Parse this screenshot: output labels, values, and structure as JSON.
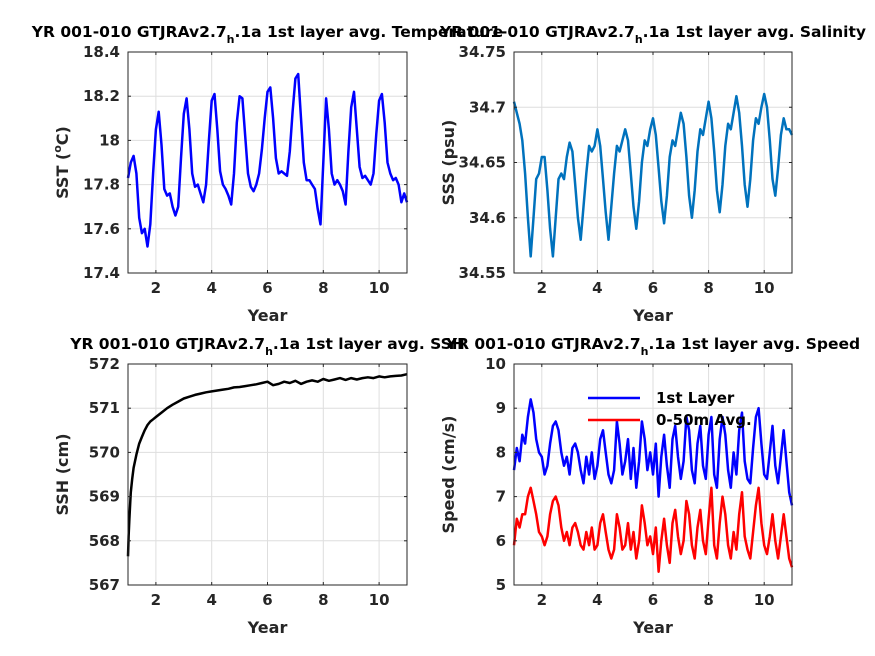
{
  "chart_data": [
    {
      "type": "line",
      "title": "YR 001-010 GTJRAv2.7",
      "title_sub": "h",
      "title_tail": ".1a 1st layer avg. Temperature",
      "xlabel": "Year",
      "ylabel": "SST (",
      "ylabel_sup": "o",
      "ylabel_tail": "C)",
      "xlim": [
        1,
        11
      ],
      "ylim": [
        17.4,
        18.4
      ],
      "xticks": [
        2,
        4,
        6,
        8,
        10
      ],
      "yticks": [
        17.4,
        17.6,
        17.8,
        18,
        18.2,
        18.4
      ],
      "ytick_labels": [
        "17.4",
        "17.6",
        "17.8",
        "18",
        "18.2",
        "18.4"
      ],
      "grid": true,
      "series": [
        {
          "color": "#0000ff",
          "x": [
            1.0,
            1.1,
            1.2,
            1.3,
            1.4,
            1.5,
            1.6,
            1.7,
            1.8,
            1.9,
            2.0,
            2.1,
            2.2,
            2.3,
            2.4,
            2.5,
            2.6,
            2.7,
            2.8,
            2.9,
            3.0,
            3.1,
            3.2,
            3.3,
            3.4,
            3.5,
            3.6,
            3.7,
            3.8,
            3.9,
            4.0,
            4.1,
            4.2,
            4.3,
            4.4,
            4.5,
            4.6,
            4.7,
            4.8,
            4.9,
            5.0,
            5.1,
            5.2,
            5.3,
            5.4,
            5.5,
            5.6,
            5.7,
            5.8,
            5.9,
            6.0,
            6.1,
            6.2,
            6.3,
            6.4,
            6.5,
            6.6,
            6.7,
            6.8,
            6.9,
            7.0,
            7.1,
            7.2,
            7.3,
            7.4,
            7.5,
            7.6,
            7.7,
            7.8,
            7.9,
            8.0,
            8.1,
            8.2,
            8.3,
            8.4,
            8.5,
            8.6,
            8.7,
            8.8,
            8.9,
            9.0,
            9.1,
            9.2,
            9.3,
            9.4,
            9.5,
            9.6,
            9.7,
            9.8,
            9.9,
            10.0,
            10.1,
            10.2,
            10.3,
            10.4,
            10.5,
            10.6,
            10.7,
            10.8,
            10.9,
            11.0
          ],
          "y": [
            17.83,
            17.9,
            17.93,
            17.85,
            17.65,
            17.58,
            17.6,
            17.52,
            17.62,
            17.85,
            18.05,
            18.13,
            17.98,
            17.78,
            17.75,
            17.76,
            17.7,
            17.66,
            17.7,
            17.92,
            18.12,
            18.19,
            18.05,
            17.85,
            17.79,
            17.8,
            17.76,
            17.72,
            17.8,
            18.0,
            18.18,
            18.21,
            18.05,
            17.86,
            17.8,
            17.78,
            17.75,
            17.71,
            17.85,
            18.08,
            18.2,
            18.19,
            18.02,
            17.85,
            17.79,
            17.77,
            17.8,
            17.85,
            17.96,
            18.1,
            18.22,
            18.24,
            18.1,
            17.92,
            17.85,
            17.86,
            17.85,
            17.84,
            17.95,
            18.13,
            18.28,
            18.3,
            18.1,
            17.9,
            17.82,
            17.82,
            17.8,
            17.78,
            17.69,
            17.62,
            17.9,
            18.19,
            18.05,
            17.85,
            17.8,
            17.82,
            17.8,
            17.77,
            17.71,
            17.95,
            18.15,
            18.22,
            18.05,
            17.88,
            17.83,
            17.84,
            17.82,
            17.8,
            17.85,
            18.03,
            18.18,
            18.21,
            18.08,
            17.9,
            17.85,
            17.82,
            17.83,
            17.8,
            17.72,
            17.76,
            17.72
          ]
        }
      ]
    },
    {
      "type": "line",
      "title": "YR 001-010 GTJRAv2.7",
      "title_sub": "h",
      "title_tail": ".1a 1st layer avg. Salinity",
      "xlabel": "Year",
      "ylabel": "SSS (psu)",
      "xlim": [
        1,
        11
      ],
      "ylim": [
        34.55,
        34.75
      ],
      "xticks": [
        2,
        4,
        6,
        8,
        10
      ],
      "yticks": [
        34.55,
        34.6,
        34.65,
        34.7,
        34.75
      ],
      "ytick_labels": [
        "34.55",
        "34.6",
        "34.65",
        "34.7",
        "34.75"
      ],
      "grid": true,
      "series": [
        {
          "color": "#0072bd",
          "x": [
            1.0,
            1.1,
            1.2,
            1.3,
            1.4,
            1.5,
            1.6,
            1.7,
            1.8,
            1.9,
            2.0,
            2.1,
            2.2,
            2.3,
            2.4,
            2.5,
            2.6,
            2.7,
            2.8,
            2.9,
            3.0,
            3.1,
            3.2,
            3.3,
            3.4,
            3.5,
            3.6,
            3.7,
            3.8,
            3.9,
            4.0,
            4.1,
            4.2,
            4.3,
            4.4,
            4.5,
            4.6,
            4.7,
            4.8,
            4.9,
            5.0,
            5.1,
            5.2,
            5.3,
            5.4,
            5.5,
            5.6,
            5.7,
            5.8,
            5.9,
            6.0,
            6.1,
            6.2,
            6.3,
            6.4,
            6.5,
            6.6,
            6.7,
            6.8,
            6.9,
            7.0,
            7.1,
            7.2,
            7.3,
            7.4,
            7.5,
            7.6,
            7.7,
            7.8,
            7.9,
            8.0,
            8.1,
            8.2,
            8.3,
            8.4,
            8.5,
            8.6,
            8.7,
            8.8,
            8.9,
            9.0,
            9.1,
            9.2,
            9.3,
            9.4,
            9.5,
            9.6,
            9.7,
            9.8,
            9.9,
            10.0,
            10.1,
            10.2,
            10.3,
            10.4,
            10.5,
            10.6,
            10.7,
            10.8,
            10.9,
            11.0
          ],
          "y": [
            34.705,
            34.695,
            34.685,
            34.67,
            34.64,
            34.6,
            34.565,
            34.6,
            34.635,
            34.64,
            34.655,
            34.655,
            34.625,
            34.59,
            34.565,
            34.6,
            34.635,
            34.64,
            34.635,
            34.655,
            34.668,
            34.66,
            34.63,
            34.6,
            34.58,
            34.61,
            34.64,
            34.665,
            34.66,
            34.665,
            34.68,
            34.665,
            34.635,
            34.605,
            34.58,
            34.61,
            34.64,
            34.665,
            34.66,
            34.67,
            34.68,
            34.67,
            34.64,
            34.61,
            34.59,
            34.615,
            34.65,
            34.67,
            34.665,
            34.68,
            34.69,
            34.675,
            34.645,
            34.615,
            34.595,
            34.62,
            34.655,
            34.67,
            34.665,
            34.68,
            34.695,
            34.685,
            34.655,
            34.62,
            34.6,
            34.625,
            34.66,
            34.68,
            34.675,
            34.69,
            34.705,
            34.69,
            34.66,
            34.625,
            34.605,
            34.63,
            34.665,
            34.685,
            34.68,
            34.695,
            34.71,
            34.695,
            34.665,
            34.63,
            34.61,
            34.635,
            34.67,
            34.69,
            34.685,
            34.7,
            34.712,
            34.7,
            34.67,
            34.635,
            34.62,
            34.645,
            34.675,
            34.69,
            34.68,
            34.68,
            34.675
          ]
        }
      ]
    },
    {
      "type": "line",
      "title": "YR 001-010 GTJRAv2.7",
      "title_sub": "h",
      "title_tail": ".1a 1st layer avg. SSH",
      "xlabel": "Year",
      "ylabel": "SSH (cm)",
      "xlim": [
        1,
        11
      ],
      "ylim": [
        567,
        572
      ],
      "xticks": [
        2,
        4,
        6,
        8,
        10
      ],
      "yticks": [
        567,
        568,
        569,
        570,
        571,
        572
      ],
      "ytick_labels": [
        "567",
        "568",
        "569",
        "570",
        "571",
        "572"
      ],
      "grid": true,
      "series": [
        {
          "color": "#000000",
          "x": [
            1.0,
            1.02,
            1.05,
            1.08,
            1.1,
            1.15,
            1.2,
            1.3,
            1.4,
            1.5,
            1.6,
            1.7,
            1.8,
            1.9,
            2.0,
            2.2,
            2.4,
            2.6,
            2.8,
            3.0,
            3.2,
            3.4,
            3.6,
            3.8,
            4.0,
            4.2,
            4.4,
            4.6,
            4.8,
            5.0,
            5.2,
            5.4,
            5.6,
            5.8,
            6.0,
            6.2,
            6.4,
            6.6,
            6.8,
            7.0,
            7.2,
            7.4,
            7.6,
            7.8,
            8.0,
            8.2,
            8.4,
            8.6,
            8.8,
            9.0,
            9.2,
            9.4,
            9.6,
            9.8,
            10.0,
            10.2,
            10.4,
            10.6,
            10.8,
            11.0
          ],
          "y": [
            567.65,
            568.1,
            568.5,
            568.85,
            569.1,
            569.4,
            569.65,
            569.95,
            570.2,
            570.35,
            570.5,
            570.62,
            570.7,
            570.75,
            570.8,
            570.9,
            571.0,
            571.08,
            571.15,
            571.22,
            571.26,
            571.3,
            571.33,
            571.36,
            571.38,
            571.4,
            571.42,
            571.44,
            571.47,
            571.48,
            571.5,
            571.52,
            571.54,
            571.57,
            571.6,
            571.52,
            571.55,
            571.6,
            571.57,
            571.62,
            571.55,
            571.6,
            571.63,
            571.6,
            571.66,
            571.62,
            571.65,
            571.68,
            571.64,
            571.68,
            571.65,
            571.68,
            571.7,
            571.68,
            571.72,
            571.7,
            571.72,
            571.73,
            571.74,
            571.77
          ]
        }
      ]
    },
    {
      "type": "line",
      "title": "YR 001-010 GTJRAv2.7",
      "title_sub": "h",
      "title_tail": ".1a 1st layer avg. Speed",
      "xlabel": "Year",
      "ylabel": "Speed (cm/s)",
      "xlim": [
        1,
        11
      ],
      "ylim": [
        5,
        10
      ],
      "xticks": [
        2,
        4,
        6,
        8,
        10
      ],
      "yticks": [
        5,
        6,
        7,
        8,
        9,
        10
      ],
      "ytick_labels": [
        "5",
        "6",
        "7",
        "8",
        "9",
        "10"
      ],
      "grid": true,
      "legend": "top-right",
      "series": [
        {
          "name": "1st Layer",
          "color": "#0000ff",
          "x": [
            1.0,
            1.1,
            1.2,
            1.3,
            1.4,
            1.5,
            1.6,
            1.7,
            1.8,
            1.9,
            2.0,
            2.1,
            2.2,
            2.3,
            2.4,
            2.5,
            2.6,
            2.7,
            2.8,
            2.9,
            3.0,
            3.1,
            3.2,
            3.3,
            3.4,
            3.5,
            3.6,
            3.7,
            3.8,
            3.9,
            4.0,
            4.1,
            4.2,
            4.3,
            4.4,
            4.5,
            4.6,
            4.7,
            4.8,
            4.9,
            5.0,
            5.1,
            5.2,
            5.3,
            5.4,
            5.5,
            5.6,
            5.7,
            5.8,
            5.9,
            6.0,
            6.1,
            6.2,
            6.3,
            6.4,
            6.5,
            6.6,
            6.7,
            6.8,
            6.9,
            7.0,
            7.1,
            7.2,
            7.3,
            7.4,
            7.5,
            7.6,
            7.7,
            7.8,
            7.9,
            8.0,
            8.1,
            8.2,
            8.3,
            8.4,
            8.5,
            8.6,
            8.7,
            8.8,
            8.9,
            9.0,
            9.1,
            9.2,
            9.3,
            9.4,
            9.5,
            9.6,
            9.7,
            9.8,
            9.9,
            10.0,
            10.1,
            10.2,
            10.3,
            10.4,
            10.5,
            10.6,
            10.7,
            10.8,
            10.9,
            11.0
          ],
          "y": [
            7.6,
            8.1,
            7.8,
            8.4,
            8.2,
            8.8,
            9.2,
            8.9,
            8.3,
            8.0,
            7.9,
            7.5,
            7.7,
            8.2,
            8.6,
            8.7,
            8.5,
            8.0,
            7.7,
            7.9,
            7.5,
            8.1,
            8.2,
            8.0,
            7.6,
            7.3,
            7.9,
            7.5,
            8.0,
            7.4,
            7.7,
            8.3,
            8.5,
            8.0,
            7.5,
            7.3,
            7.6,
            8.7,
            8.2,
            7.5,
            7.8,
            8.3,
            7.4,
            8.1,
            7.2,
            7.8,
            8.7,
            8.3,
            7.6,
            8.0,
            7.5,
            8.2,
            7.0,
            7.9,
            8.4,
            7.7,
            7.2,
            8.3,
            8.6,
            7.9,
            7.4,
            7.8,
            8.8,
            8.5,
            7.6,
            7.3,
            8.2,
            8.6,
            7.7,
            7.4,
            8.4,
            8.8,
            7.5,
            7.2,
            8.3,
            8.8,
            8.4,
            7.6,
            7.2,
            8.0,
            7.5,
            8.5,
            8.9,
            7.8,
            7.4,
            7.3,
            8.1,
            8.8,
            9.0,
            8.2,
            7.5,
            7.4,
            8.0,
            8.6,
            7.7,
            7.3,
            7.9,
            8.5,
            7.8,
            7.1,
            6.8
          ]
        },
        {
          "name": "0-50m Avg.",
          "color": "#ff0000",
          "x": [
            1.0,
            1.1,
            1.2,
            1.3,
            1.4,
            1.5,
            1.6,
            1.7,
            1.8,
            1.9,
            2.0,
            2.1,
            2.2,
            2.3,
            2.4,
            2.5,
            2.6,
            2.7,
            2.8,
            2.9,
            3.0,
            3.1,
            3.2,
            3.3,
            3.4,
            3.5,
            3.6,
            3.7,
            3.8,
            3.9,
            4.0,
            4.1,
            4.2,
            4.3,
            4.4,
            4.5,
            4.6,
            4.7,
            4.8,
            4.9,
            5.0,
            5.1,
            5.2,
            5.3,
            5.4,
            5.5,
            5.6,
            5.7,
            5.8,
            5.9,
            6.0,
            6.1,
            6.2,
            6.3,
            6.4,
            6.5,
            6.6,
            6.7,
            6.8,
            6.9,
            7.0,
            7.1,
            7.2,
            7.3,
            7.4,
            7.5,
            7.6,
            7.7,
            7.8,
            7.9,
            8.0,
            8.1,
            8.2,
            8.3,
            8.4,
            8.5,
            8.6,
            8.7,
            8.8,
            8.9,
            9.0,
            9.1,
            9.2,
            9.3,
            9.4,
            9.5,
            9.6,
            9.7,
            9.8,
            9.9,
            10.0,
            10.1,
            10.2,
            10.3,
            10.4,
            10.5,
            10.6,
            10.7,
            10.8,
            10.9,
            11.0
          ],
          "y": [
            5.9,
            6.5,
            6.3,
            6.6,
            6.6,
            7.0,
            7.2,
            6.9,
            6.6,
            6.2,
            6.1,
            5.9,
            6.1,
            6.6,
            6.9,
            7.0,
            6.8,
            6.3,
            6.0,
            6.2,
            5.9,
            6.3,
            6.4,
            6.2,
            5.9,
            5.8,
            6.2,
            5.9,
            6.3,
            5.8,
            5.9,
            6.4,
            6.6,
            6.2,
            5.8,
            5.6,
            5.8,
            6.6,
            6.3,
            5.8,
            5.9,
            6.4,
            5.8,
            6.2,
            5.6,
            6.0,
            6.8,
            6.4,
            5.9,
            6.1,
            5.7,
            6.3,
            5.3,
            6.0,
            6.5,
            5.9,
            5.5,
            6.4,
            6.7,
            6.1,
            5.7,
            6.0,
            6.9,
            6.6,
            5.9,
            5.6,
            6.3,
            6.7,
            6.0,
            5.7,
            6.5,
            7.2,
            5.9,
            5.6,
            6.4,
            7.0,
            6.6,
            5.9,
            5.6,
            6.2,
            5.8,
            6.6,
            7.1,
            6.1,
            5.8,
            5.6,
            6.2,
            6.8,
            7.2,
            6.4,
            5.9,
            5.7,
            6.1,
            6.6,
            6.0,
            5.6,
            6.1,
            6.6,
            6.1,
            5.6,
            5.4
          ]
        }
      ]
    }
  ]
}
